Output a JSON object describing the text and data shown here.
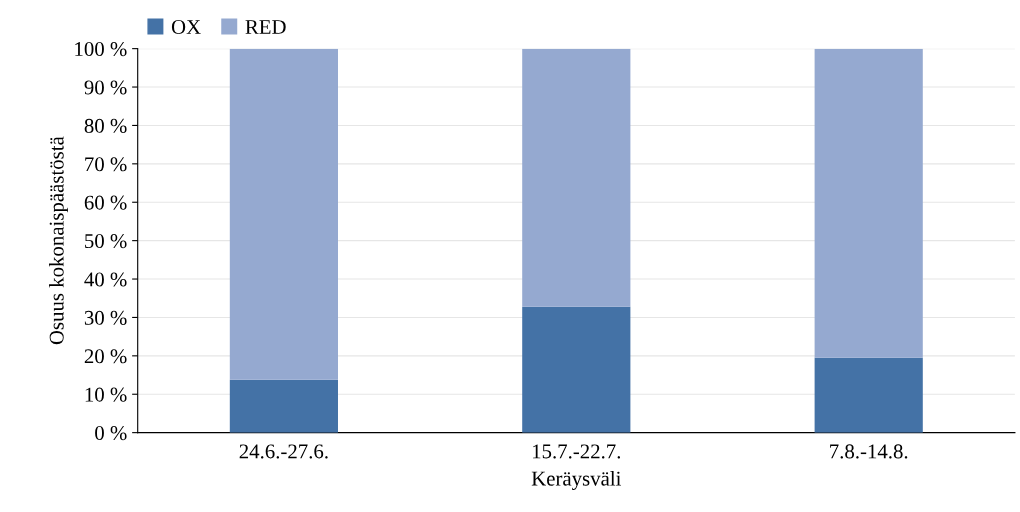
{
  "chart_data": {
    "type": "bar",
    "stacked": true,
    "categories": [
      "24.6.-27.6.",
      "15.7.-22.7.",
      "7.8.-14.8."
    ],
    "series": [
      {
        "name": "OX",
        "color": "#4472a6",
        "values": [
          13.8,
          32.8,
          19.5
        ]
      },
      {
        "name": "RED",
        "color": "#95a9d0",
        "values": [
          86.2,
          67.2,
          80.5
        ]
      }
    ],
    "xlabel": "Keräysväli",
    "ylabel": "Osuus kokonaispäästöstä",
    "ylim": [
      0,
      100
    ],
    "yticks": [
      {
        "value": 0,
        "label": "0 %"
      },
      {
        "value": 10,
        "label": "10 %"
      },
      {
        "value": 20,
        "label": "20 %"
      },
      {
        "value": 30,
        "label": "30 %"
      },
      {
        "value": 40,
        "label": "40 %"
      },
      {
        "value": 50,
        "label": "50 %"
      },
      {
        "value": 60,
        "label": "60 %"
      },
      {
        "value": 70,
        "label": "70 %"
      },
      {
        "value": 80,
        "label": "80 %"
      },
      {
        "value": 90,
        "label": "90 %"
      },
      {
        "value": 100,
        "label": "100 %"
      }
    ],
    "grid": "y",
    "legend": "top left"
  }
}
